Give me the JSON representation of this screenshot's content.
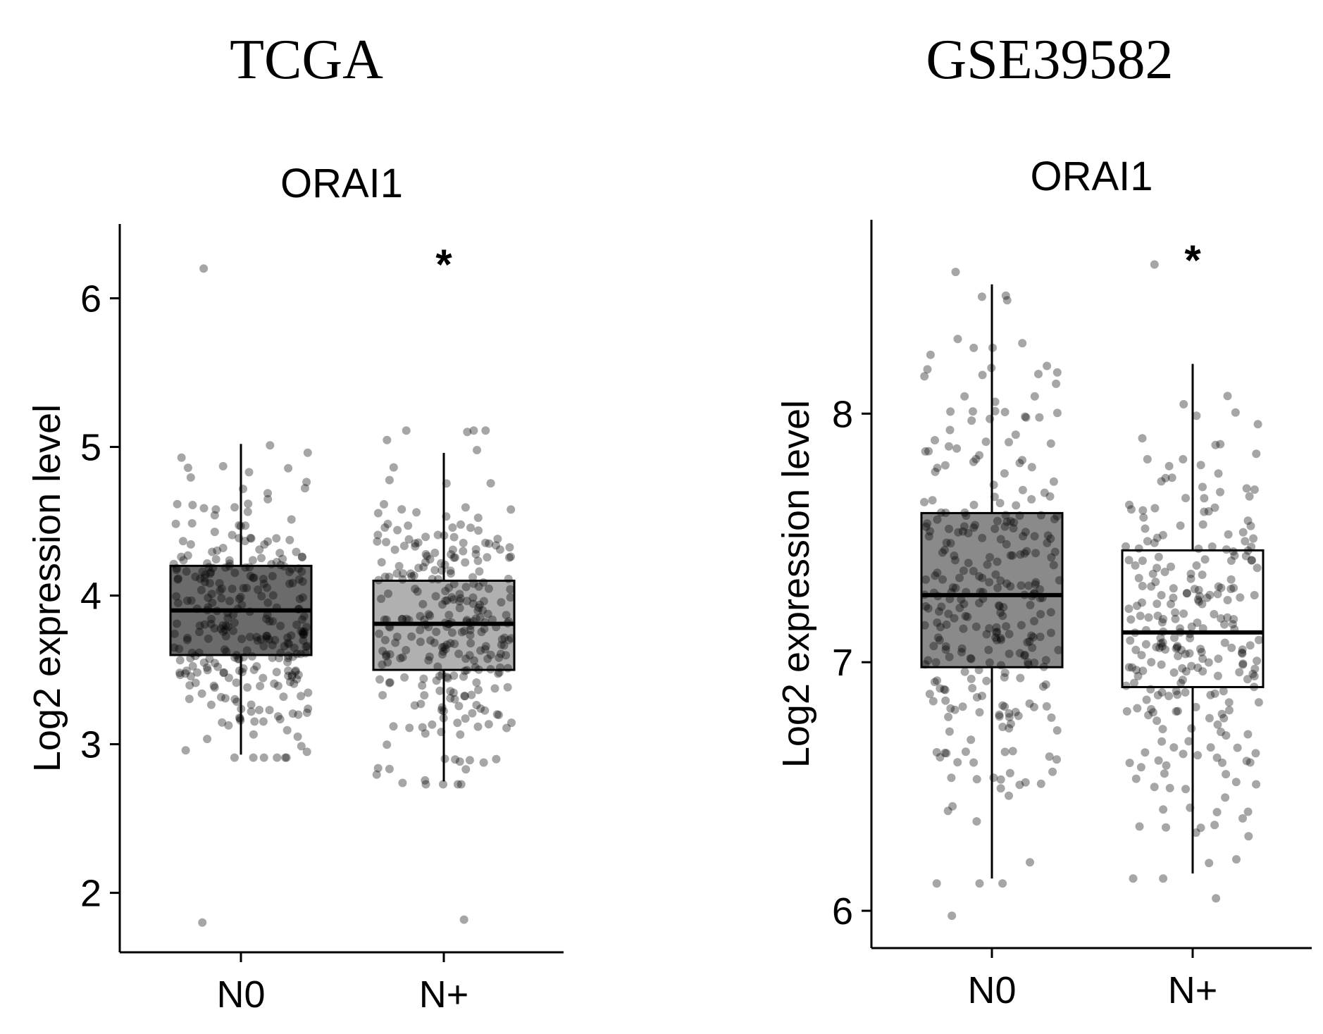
{
  "figure": {
    "left_title": "TCGA",
    "right_title": "GSE39582"
  },
  "chart_data": [
    {
      "type": "box",
      "dataset": "TCGA",
      "title": "ORAI1",
      "ylabel": "Log2 expression level",
      "xlabel": "",
      "ylim": [
        1.6,
        6.5
      ],
      "yticks": [
        2,
        3,
        4,
        5,
        6
      ],
      "categories": [
        "N0",
        "N+"
      ],
      "significance": {
        "category": "N+",
        "label": "*"
      },
      "boxes": [
        {
          "category": "N0",
          "whisker_low": 2.93,
          "q1": 3.6,
          "median": 3.9,
          "q3": 4.2,
          "whisker_high": 5.02,
          "fill": "#6b6b6b",
          "outliers": [
            1.8,
            6.2
          ]
        },
        {
          "category": "N+",
          "whisker_low": 2.75,
          "q1": 3.5,
          "median": 3.81,
          "q3": 4.1,
          "whisker_high": 4.96,
          "fill": "#b0b0b0",
          "outliers": [
            1.82
          ]
        }
      ],
      "points": {
        "N0": {
          "n": 300
        },
        "N+": {
          "n": 290
        }
      }
    },
    {
      "type": "box",
      "dataset": "GSE39582",
      "title": "ORAI1",
      "ylabel": "Log2 expression level",
      "xlabel": "",
      "ylim": [
        5.85,
        8.78
      ],
      "yticks": [
        6,
        7,
        8
      ],
      "categories": [
        "N0",
        "N+"
      ],
      "significance": {
        "category": "N+",
        "label": "*"
      },
      "boxes": [
        {
          "category": "N0",
          "whisker_low": 6.13,
          "q1": 6.98,
          "median": 7.27,
          "q3": 7.6,
          "whisker_high": 8.52,
          "fill": "#8a8a8a",
          "outliers": [
            5.98
          ]
        },
        {
          "category": "N+",
          "whisker_low": 6.15,
          "q1": 6.9,
          "median": 7.12,
          "q3": 7.45,
          "whisker_high": 8.2,
          "fill": "#ffffff",
          "outliers": [
            6.05,
            8.6
          ]
        }
      ],
      "points": {
        "N0": {
          "n": 300
        },
        "N+": {
          "n": 260
        }
      }
    }
  ]
}
